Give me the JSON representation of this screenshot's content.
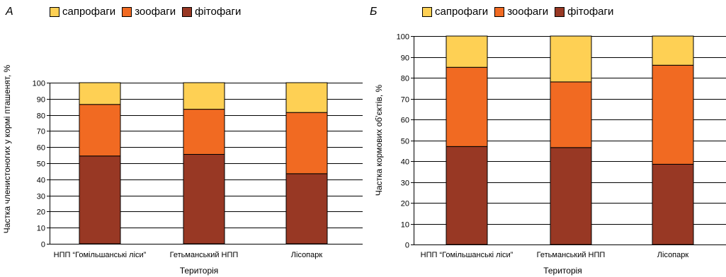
{
  "chart_data": [
    {
      "type": "bar",
      "stacked": true,
      "panel_label": "А",
      "title": "",
      "xlabel": "Територія",
      "ylabel": "Частка членистоногих у кормі пташенят, %",
      "ylim": [
        0,
        100
      ],
      "yticks": [
        0,
        10,
        20,
        30,
        40,
        50,
        60,
        70,
        80,
        90,
        100
      ],
      "grid": true,
      "legend_position": "top",
      "categories": [
        "НПП “Гомільшанські ліси”",
        "Гетьманський НПП",
        "Лісопарк"
      ],
      "series": [
        {
          "name": "фітофаги",
          "color": "#983824",
          "values": [
            54.5,
            55.5,
            43.5
          ]
        },
        {
          "name": "зоофаги",
          "color": "#f16a22",
          "values": [
            32,
            28,
            38
          ]
        },
        {
          "name": "сапрофаги",
          "color": "#fed054",
          "values": [
            13.5,
            16.5,
            18.5
          ]
        }
      ]
    },
    {
      "type": "bar",
      "stacked": true,
      "panel_label": "Б",
      "title": "",
      "xlabel": "Територія",
      "ylabel": "Частка кормових об’єктів, %",
      "ylim": [
        0,
        100
      ],
      "yticks": [
        0,
        10,
        20,
        30,
        40,
        50,
        60,
        70,
        80,
        90,
        100
      ],
      "grid": true,
      "legend_position": "top",
      "categories": [
        "НПП “Гомільшанські ліси”",
        "Гетьманський НПП",
        "Лісопарк"
      ],
      "series": [
        {
          "name": "фітофаги",
          "color": "#983824",
          "values": [
            47,
            46.5,
            38.5
          ]
        },
        {
          "name": "зоофаги",
          "color": "#f16a22",
          "values": [
            38,
            31.5,
            47.5
          ]
        },
        {
          "name": "сапрофаги",
          "color": "#fed054",
          "values": [
            15,
            22,
            14
          ]
        }
      ]
    }
  ],
  "legend_order": [
    "сапрофаги",
    "зоофаги",
    "фітофаги"
  ]
}
